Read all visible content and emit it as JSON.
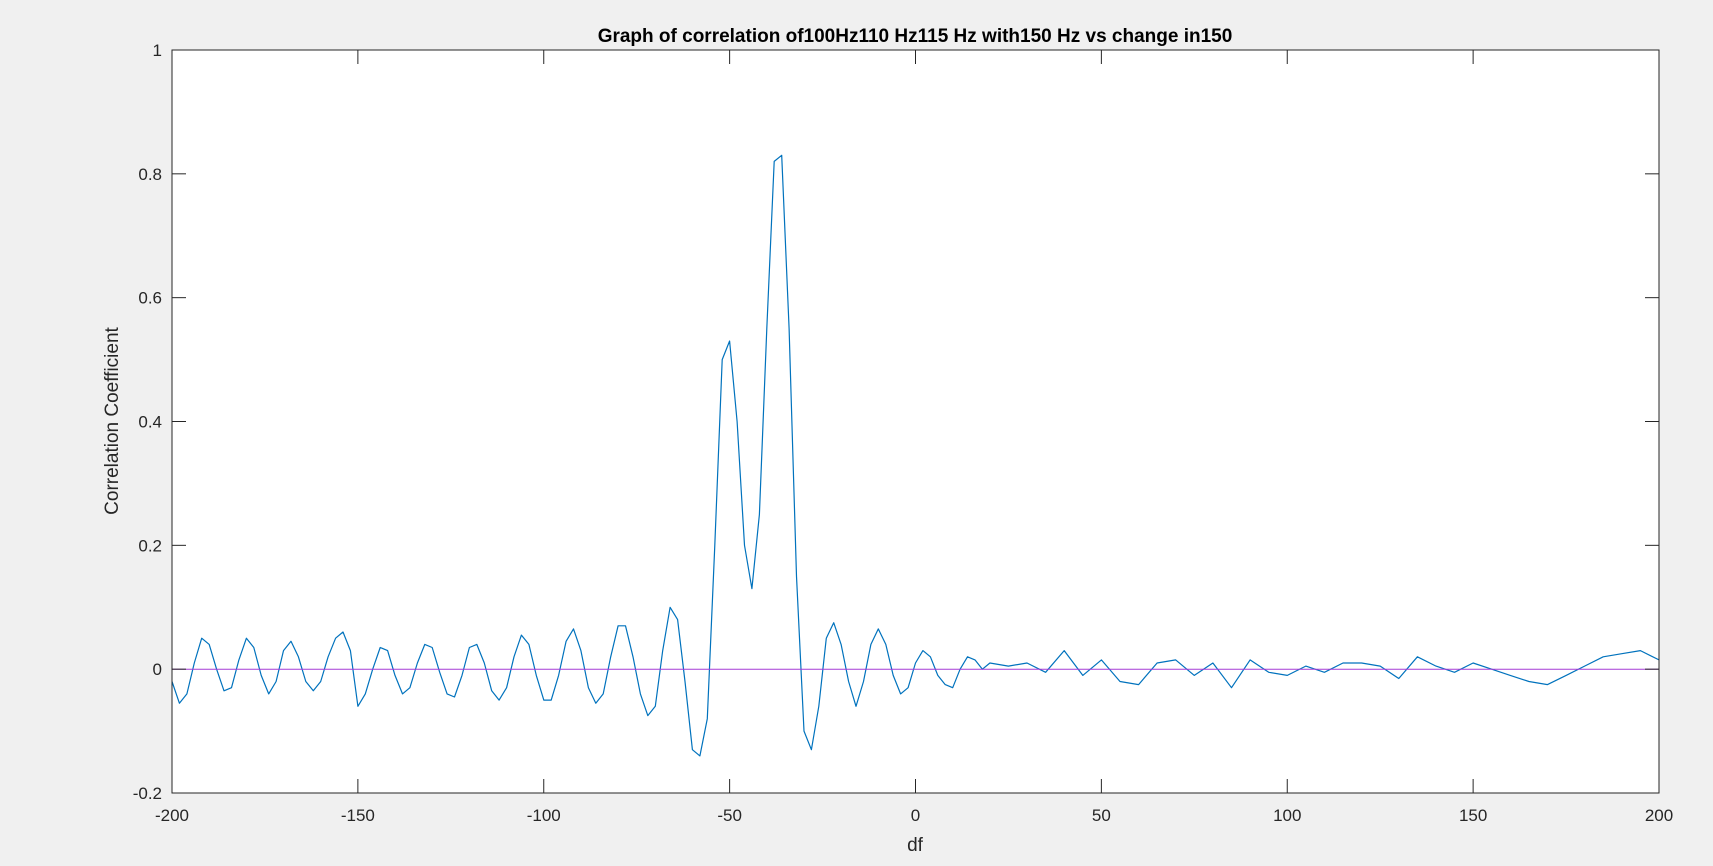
{
  "chart_data": {
    "type": "line",
    "title": "Graph of correlation of100Hz110 Hz115 Hz with150 Hz vs change in150",
    "xlabel": "df",
    "ylabel": "Correlation Coefficient",
    "xlim": [
      -200,
      200
    ],
    "ylim": [
      -0.2,
      1
    ],
    "xticks": [
      -200,
      -150,
      -100,
      -50,
      0,
      50,
      100,
      150,
      200
    ],
    "xtick_labels": [
      "-200",
      "-150",
      "-100",
      "-50",
      "0",
      "50",
      "100",
      "150",
      "200"
    ],
    "yticks": [
      -0.2,
      0,
      0.2,
      0.4,
      0.6,
      0.8,
      1
    ],
    "ytick_labels": [
      "-0.2",
      "0",
      "0.2",
      "0.4",
      "0.6",
      "0.8",
      "1"
    ],
    "grid": false,
    "legend": "none",
    "series": [
      {
        "color": "#0072BD",
        "x": [
          -200,
          -198,
          -196,
          -194,
          -192,
          -190,
          -188,
          -186,
          -184,
          -182,
          -180,
          -178,
          -176,
          -174,
          -172,
          -170,
          -168,
          -166,
          -164,
          -162,
          -160,
          -158,
          -156,
          -154,
          -152,
          -150,
          -148,
          -146,
          -144,
          -142,
          -140,
          -138,
          -136,
          -134,
          -132,
          -130,
          -128,
          -126,
          -124,
          -122,
          -120,
          -118,
          -116,
          -114,
          -112,
          -110,
          -108,
          -106,
          -104,
          -102,
          -100,
          -98,
          -96,
          -94,
          -92,
          -90,
          -88,
          -86,
          -84,
          -82,
          -80,
          -78,
          -76,
          -74,
          -72,
          -70,
          -68,
          -66,
          -64,
          -62,
          -60,
          -58,
          -56,
          -54,
          -52,
          -50,
          -48,
          -46,
          -44,
          -42,
          -40,
          -38,
          -36,
          -34,
          -32,
          -30,
          -28,
          -26,
          -24,
          -22,
          -20,
          -18,
          -16,
          -14,
          -12,
          -10,
          -8,
          -6,
          -4,
          -2,
          0,
          2,
          4,
          6,
          8,
          10,
          12,
          14,
          16,
          18,
          20,
          25,
          30,
          35,
          40,
          45,
          50,
          55,
          60,
          65,
          70,
          75,
          80,
          85,
          90,
          95,
          100,
          105,
          110,
          115,
          120,
          125,
          130,
          135,
          140,
          145,
          150,
          155,
          160,
          165,
          170,
          175,
          180,
          185,
          190,
          195,
          200
        ],
        "y": [
          -0.02,
          -0.055,
          -0.04,
          0.01,
          0.05,
          0.04,
          0.0,
          -0.035,
          -0.03,
          0.015,
          0.05,
          0.035,
          -0.01,
          -0.04,
          -0.02,
          0.03,
          0.045,
          0.02,
          -0.02,
          -0.035,
          -0.02,
          0.02,
          0.05,
          0.06,
          0.03,
          -0.06,
          -0.04,
          0.0,
          0.035,
          0.03,
          -0.01,
          -0.04,
          -0.03,
          0.01,
          0.04,
          0.035,
          -0.005,
          -0.04,
          -0.045,
          -0.01,
          0.035,
          0.04,
          0.01,
          -0.035,
          -0.05,
          -0.03,
          0.02,
          0.055,
          0.04,
          -0.01,
          -0.05,
          -0.05,
          -0.01,
          0.045,
          0.065,
          0.03,
          -0.03,
          -0.055,
          -0.04,
          0.02,
          0.07,
          0.07,
          0.02,
          -0.04,
          -0.075,
          -0.06,
          0.03,
          0.1,
          0.08,
          -0.02,
          -0.13,
          -0.14,
          -0.08,
          0.2,
          0.5,
          0.53,
          0.4,
          0.2,
          0.13,
          0.25,
          0.55,
          0.82,
          0.83,
          0.55,
          0.15,
          -0.1,
          -0.13,
          -0.06,
          0.05,
          0.075,
          0.04,
          -0.02,
          -0.06,
          -0.02,
          0.04,
          0.065,
          0.04,
          -0.01,
          -0.04,
          -0.03,
          0.01,
          0.03,
          0.02,
          -0.01,
          -0.025,
          -0.03,
          0.0,
          0.02,
          0.015,
          0.0,
          0.01,
          0.005,
          0.01,
          -0.005,
          0.03,
          -0.01,
          0.015,
          -0.02,
          -0.025,
          0.01,
          0.015,
          -0.01,
          0.01,
          -0.03,
          0.015,
          -0.005,
          -0.01,
          0.005,
          -0.005,
          0.01,
          0.01,
          0.005,
          -0.015,
          0.02,
          0.005,
          -0.005,
          0.01,
          0.0,
          -0.01,
          -0.02,
          -0.025,
          -0.01,
          0.005,
          0.02,
          0.025,
          0.03,
          0.015
        ]
      },
      {
        "color": "#A53BD6",
        "x": [
          -200,
          200
        ],
        "y": [
          0,
          0
        ]
      }
    ]
  }
}
